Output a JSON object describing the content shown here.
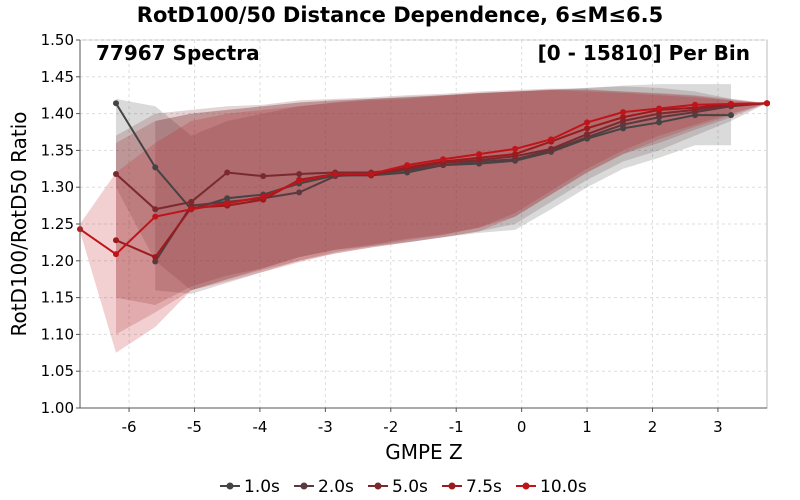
{
  "chart_data": {
    "type": "line",
    "title": "RotD100/50 Distance Dependence, 6≤M≤6.5",
    "xlabel": "GMPE Z",
    "ylabel": "RotD100/RotD50 Ratio",
    "annotations": {
      "left": "77967 Spectra",
      "right": "[0 - 15810] Per Bin"
    },
    "xlim": [
      -6.75,
      3.75
    ],
    "ylim": [
      1.0,
      1.5
    ],
    "xticks": [
      -6,
      -5,
      -4,
      -3,
      -2,
      -1,
      0,
      1,
      2,
      3
    ],
    "yticks": [
      1.0,
      1.05,
      1.1,
      1.15,
      1.2,
      1.25,
      1.3,
      1.35,
      1.4,
      1.45,
      1.5
    ],
    "grid": true,
    "legend_position": "bottom",
    "series": [
      {
        "name": "1.0s",
        "color": "#444444",
        "x": [
          -6.2,
          -5.6,
          -5.05,
          -4.5,
          -3.95,
          -3.4,
          -2.85,
          -2.3,
          -1.75,
          -1.2,
          -0.65,
          -0.1,
          0.45,
          1.0,
          1.55,
          2.1,
          2.65,
          3.2
        ],
        "y": [
          1.414,
          1.327,
          1.27,
          1.285,
          1.29,
          1.305,
          1.316,
          1.316,
          1.32,
          1.33,
          1.332,
          1.336,
          1.348,
          1.366,
          1.38,
          1.388,
          1.398,
          1.398
        ],
        "band_lower": [
          1.3,
          1.2,
          1.16,
          1.175,
          1.19,
          1.205,
          1.215,
          1.22,
          1.225,
          1.232,
          1.238,
          1.242,
          1.27,
          1.3,
          1.325,
          1.34,
          1.357,
          1.357
        ],
        "band_upper": [
          1.42,
          1.41,
          1.37,
          1.39,
          1.4,
          1.41,
          1.415,
          1.42,
          1.422,
          1.425,
          1.428,
          1.43,
          1.432,
          1.435,
          1.438,
          1.44,
          1.44,
          1.44
        ]
      },
      {
        "name": "2.0s",
        "color": "#5a3a3e",
        "x": [
          -5.6,
          -5.05,
          -4.5,
          -3.95,
          -3.4,
          -2.85,
          -2.3,
          -1.75,
          -1.2,
          -0.65,
          -0.1,
          0.45,
          1.0,
          1.55,
          2.1,
          2.65,
          3.2,
          3.75
        ],
        "y": [
          1.199,
          1.275,
          1.28,
          1.285,
          1.293,
          1.315,
          1.318,
          1.323,
          1.33,
          1.335,
          1.338,
          1.35,
          1.368,
          1.385,
          1.395,
          1.402,
          1.41,
          1.414
        ],
        "band_lower": [
          1.16,
          1.155,
          1.17,
          1.185,
          1.2,
          1.21,
          1.218,
          1.225,
          1.232,
          1.24,
          1.25,
          1.28,
          1.31,
          1.335,
          1.35,
          1.37,
          1.39,
          1.414
        ],
        "band_upper": [
          1.39,
          1.4,
          1.405,
          1.41,
          1.415,
          1.418,
          1.42,
          1.423,
          1.425,
          1.428,
          1.43,
          1.433,
          1.435,
          1.437,
          1.435,
          1.43,
          1.42,
          1.414
        ]
      },
      {
        "name": "5.0s",
        "color": "#7a2a2e",
        "x": [
          -6.2,
          -5.6,
          -5.05,
          -4.5,
          -3.95,
          -3.4,
          -2.85,
          -2.3,
          -1.75,
          -1.2,
          -0.65,
          -0.1,
          0.45,
          1.0,
          1.55,
          2.1,
          2.65,
          3.2,
          3.75
        ],
        "y": [
          1.318,
          1.27,
          1.28,
          1.32,
          1.315,
          1.318,
          1.32,
          1.32,
          1.325,
          1.333,
          1.337,
          1.342,
          1.352,
          1.372,
          1.39,
          1.4,
          1.405,
          1.412,
          1.414
        ],
        "band_lower": [
          1.15,
          1.14,
          1.165,
          1.18,
          1.19,
          1.205,
          1.215,
          1.222,
          1.23,
          1.236,
          1.245,
          1.26,
          1.29,
          1.32,
          1.345,
          1.36,
          1.378,
          1.395,
          1.414
        ],
        "band_upper": [
          1.37,
          1.4,
          1.405,
          1.41,
          1.412,
          1.418,
          1.42,
          1.422,
          1.425,
          1.427,
          1.43,
          1.432,
          1.434,
          1.433,
          1.43,
          1.427,
          1.424,
          1.418,
          1.414
        ]
      },
      {
        "name": "7.5s",
        "color": "#9a1a1e",
        "x": [
          -6.2,
          -5.6,
          -5.05,
          -4.5,
          -3.95,
          -3.4,
          -2.85,
          -2.3,
          -1.75,
          -1.2,
          -0.65,
          -0.1,
          0.45,
          1.0,
          1.55,
          2.1,
          2.65,
          3.2,
          3.75
        ],
        "y": [
          1.228,
          1.205,
          1.272,
          1.275,
          1.283,
          1.31,
          1.318,
          1.316,
          1.327,
          1.335,
          1.34,
          1.345,
          1.362,
          1.38,
          1.395,
          1.405,
          1.408,
          1.413,
          1.414
        ],
        "band_lower": [
          1.1,
          1.13,
          1.16,
          1.175,
          1.188,
          1.2,
          1.212,
          1.22,
          1.228,
          1.235,
          1.245,
          1.265,
          1.295,
          1.325,
          1.35,
          1.37,
          1.385,
          1.4,
          1.414
        ],
        "band_upper": [
          1.36,
          1.39,
          1.4,
          1.405,
          1.41,
          1.415,
          1.418,
          1.42,
          1.422,
          1.425,
          1.428,
          1.43,
          1.432,
          1.432,
          1.43,
          1.428,
          1.425,
          1.42,
          1.414
        ]
      },
      {
        "name": "10.0s",
        "color": "#c0141a",
        "x": [
          -6.75,
          -6.2,
          -5.6,
          -5.05,
          -4.5,
          -3.95,
          -3.4,
          -2.85,
          -2.3,
          -1.75,
          -1.2,
          -0.65,
          -0.1,
          0.45,
          1.0,
          1.55,
          2.1,
          2.65,
          3.2,
          3.75
        ],
        "y": [
          1.243,
          1.209,
          1.26,
          1.27,
          1.278,
          1.287,
          1.308,
          1.318,
          1.318,
          1.33,
          1.338,
          1.345,
          1.352,
          1.365,
          1.388,
          1.402,
          1.407,
          1.412,
          1.413,
          1.414
        ],
        "band_lower": [
          1.24,
          1.075,
          1.11,
          1.16,
          1.172,
          1.185,
          1.198,
          1.21,
          1.218,
          1.225,
          1.232,
          1.24,
          1.26,
          1.29,
          1.32,
          1.345,
          1.365,
          1.382,
          1.398,
          1.414
        ],
        "band_upper": [
          1.25,
          1.32,
          1.36,
          1.39,
          1.4,
          1.405,
          1.41,
          1.415,
          1.418,
          1.42,
          1.424,
          1.427,
          1.43,
          1.432,
          1.43,
          1.428,
          1.425,
          1.422,
          1.418,
          1.414
        ]
      }
    ]
  }
}
